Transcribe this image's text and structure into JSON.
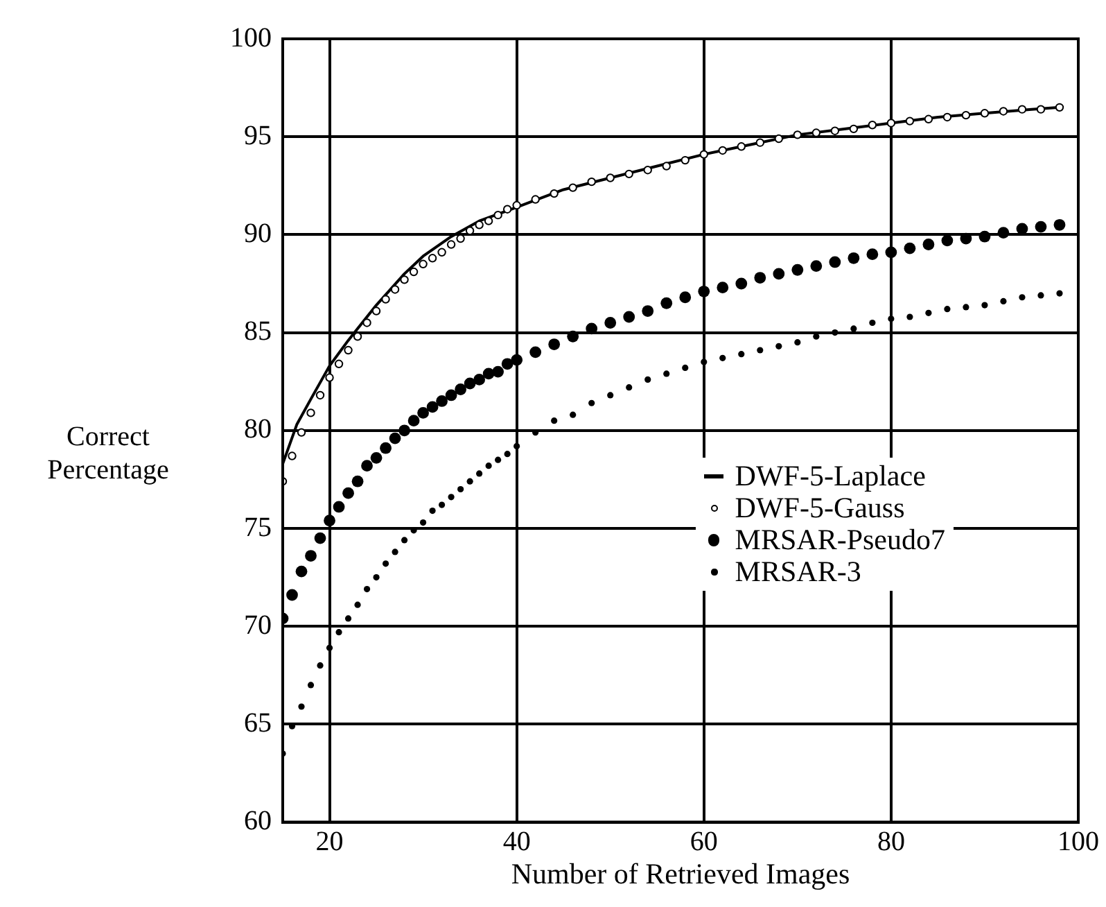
{
  "chart_data": {
    "type": "scatter",
    "xlabel": "Number of Retrieved Images",
    "ylabel": "Correct\nPercentage",
    "xlim": [
      15,
      100
    ],
    "xticks": [
      20,
      40,
      60,
      80,
      100
    ],
    "ylim": [
      60,
      100
    ],
    "yticks": [
      60,
      65,
      70,
      75,
      80,
      85,
      90,
      95,
      100
    ],
    "grid": true,
    "legend": "right",
    "series": [
      {
        "name": "DWF-5-Laplace",
        "type": "line",
        "marker": "none",
        "color": "#000000",
        "x": [
          15,
          16.5,
          18,
          20,
          22,
          25,
          28,
          30,
          33,
          36,
          40,
          45,
          50,
          55,
          60,
          65,
          70,
          75,
          80,
          85,
          90,
          95,
          98
        ],
        "values": [
          78.3,
          80.3,
          81.6,
          83.3,
          84.6,
          86.4,
          88.0,
          88.9,
          89.9,
          90.7,
          91.4,
          92.3,
          92.9,
          93.5,
          94.1,
          94.6,
          95.1,
          95.4,
          95.7,
          96.0,
          96.2,
          96.4,
          96.5
        ]
      },
      {
        "name": "DWF-5-Gauss",
        "type": "scatter",
        "marker": "circle",
        "color": "#000000",
        "x": [
          15,
          16,
          17,
          18,
          19,
          20,
          21,
          22,
          23,
          24,
          25,
          26,
          27,
          28,
          29,
          30,
          31,
          32,
          33,
          34,
          35,
          36,
          37,
          38,
          39,
          40,
          42,
          44,
          46,
          48,
          50,
          52,
          54,
          56,
          58,
          60,
          62,
          64,
          66,
          68,
          70,
          72,
          74,
          76,
          78,
          80,
          82,
          84,
          86,
          88,
          90,
          92,
          94,
          96,
          98
        ],
        "values": [
          77.4,
          78.7,
          79.9,
          80.9,
          81.8,
          82.7,
          83.4,
          84.1,
          84.8,
          85.5,
          86.1,
          86.7,
          87.2,
          87.7,
          88.1,
          88.5,
          88.8,
          89.1,
          89.5,
          89.8,
          90.2,
          90.5,
          90.7,
          91.0,
          91.3,
          91.5,
          91.8,
          92.1,
          92.4,
          92.7,
          92.9,
          93.1,
          93.3,
          93.5,
          93.8,
          94.1,
          94.3,
          94.5,
          94.7,
          94.9,
          95.1,
          95.2,
          95.3,
          95.4,
          95.6,
          95.7,
          95.8,
          95.9,
          96.0,
          96.1,
          96.2,
          96.3,
          96.4,
          96.4,
          96.5
        ]
      },
      {
        "name": "MRSAR-Pseudo7",
        "type": "scatter",
        "marker": "circle",
        "color": "#000000",
        "x": [
          15,
          16,
          17,
          18,
          19,
          20,
          21,
          22,
          23,
          24,
          25,
          26,
          27,
          28,
          29,
          30,
          31,
          32,
          33,
          34,
          35,
          36,
          37,
          38,
          39,
          40,
          42,
          44,
          46,
          48,
          50,
          52,
          54,
          56,
          58,
          60,
          62,
          64,
          66,
          68,
          70,
          72,
          74,
          76,
          78,
          80,
          82,
          84,
          86,
          88,
          90,
          92,
          94,
          96,
          98
        ],
        "values": [
          70.4,
          71.6,
          72.8,
          73.6,
          74.5,
          75.4,
          76.1,
          76.8,
          77.4,
          78.2,
          78.6,
          79.1,
          79.6,
          80.0,
          80.5,
          80.9,
          81.2,
          81.5,
          81.8,
          82.1,
          82.4,
          82.6,
          82.9,
          83.0,
          83.4,
          83.6,
          84.0,
          84.4,
          84.8,
          85.2,
          85.5,
          85.8,
          86.1,
          86.5,
          86.8,
          87.1,
          87.3,
          87.5,
          87.8,
          88.0,
          88.2,
          88.4,
          88.6,
          88.8,
          89.0,
          89.1,
          89.3,
          89.5,
          89.7,
          89.8,
          89.9,
          90.1,
          90.3,
          90.4,
          90.5
        ]
      },
      {
        "name": "MRSAR-3",
        "type": "scatter",
        "marker": "circle",
        "color": "#000000",
        "x": [
          15,
          16,
          17,
          18,
          19,
          20,
          21,
          22,
          23,
          24,
          25,
          26,
          27,
          28,
          29,
          30,
          31,
          32,
          33,
          34,
          35,
          36,
          37,
          38,
          39,
          40,
          42,
          44,
          46,
          48,
          50,
          52,
          54,
          56,
          58,
          60,
          62,
          64,
          66,
          68,
          70,
          72,
          74,
          76,
          78,
          80,
          82,
          84,
          86,
          88,
          90,
          92,
          94,
          96,
          98
        ],
        "values": [
          63.5,
          64.9,
          65.9,
          67.0,
          68.0,
          68.9,
          69.7,
          70.4,
          71.1,
          71.9,
          72.5,
          73.2,
          73.8,
          74.4,
          74.9,
          75.3,
          75.9,
          76.2,
          76.6,
          77.0,
          77.4,
          77.8,
          78.2,
          78.5,
          78.8,
          79.2,
          79.9,
          80.5,
          80.8,
          81.4,
          81.8,
          82.2,
          82.6,
          82.9,
          83.2,
          83.5,
          83.7,
          83.9,
          84.1,
          84.3,
          84.5,
          84.8,
          85.0,
          85.2,
          85.5,
          85.7,
          85.8,
          86.0,
          86.2,
          86.3,
          86.4,
          86.6,
          86.8,
          86.9,
          87.0
        ]
      }
    ]
  }
}
